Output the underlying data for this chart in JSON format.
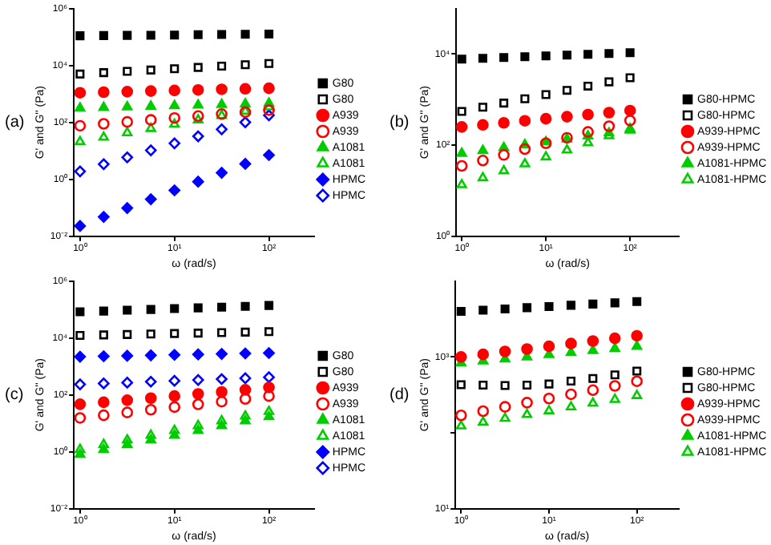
{
  "chart_data": [
    {
      "type": "scatter",
      "title": "(a)",
      "xlabel": "ω (rad/s)",
      "ylabel": "G' and G'' (Pa)",
      "log": "xy",
      "grid": false,
      "legend": "right",
      "x": [
        1,
        1.78,
        3.16,
        5.62,
        10,
        17.8,
        31.6,
        56.2,
        100
      ],
      "xlim": [
        0.86,
        300
      ],
      "xticks": [
        {
          "value": 1,
          "label": "10⁰"
        },
        {
          "value": 10,
          "label": "10¹"
        },
        {
          "value": 100,
          "label": "10²"
        }
      ],
      "ylim": [
        0.01,
        1000000
      ],
      "yticks": [
        {
          "value": 0.01,
          "label": "10⁻²"
        },
        {
          "value": 1,
          "label": "10⁰"
        },
        {
          "value": 100,
          "label": "10²"
        },
        {
          "value": 10000,
          "label": "10⁴"
        },
        {
          "value": 1000000,
          "label": "10⁶"
        }
      ],
      "series": [
        {
          "name": "G80",
          "color": "#000000",
          "marker": "square",
          "values": [
            110000,
            112000,
            114000,
            115000,
            117000,
            120000,
            122000,
            124000,
            126000
          ]
        },
        {
          "name": "G80",
          "color": "#000000",
          "marker": "square",
          "values": [
            5000,
            5600,
            6200,
            6900,
            7700,
            8500,
            9500,
            10600,
            11700
          ]
        },
        {
          "name": "A939",
          "color": "#ff0000",
          "marker": "circle",
          "values": [
            1100,
            1150,
            1200,
            1260,
            1320,
            1380,
            1450,
            1510,
            1580
          ]
        },
        {
          "name": "A939",
          "color": "#ff0000",
          "marker": "circle",
          "values": [
            76,
            89,
            104,
            122,
            143,
            167,
            196,
            230,
            269
          ]
        },
        {
          "name": "A1081",
          "color": "#00cc00",
          "marker": "triangle",
          "values": [
            316,
            332,
            348,
            366,
            384,
            403,
            423,
            445,
            468
          ]
        },
        {
          "name": "A1081",
          "color": "#00cc00",
          "marker": "triangle",
          "values": [
            21,
            30,
            43,
            61,
            86,
            122,
            173,
            245,
            347
          ]
        },
        {
          "name": "HPMC",
          "color": "#0000ff",
          "marker": "diamond",
          "values": [
            0.023,
            0.048,
            0.098,
            0.2,
            0.41,
            0.83,
            1.7,
            3.5,
            7.1
          ]
        },
        {
          "name": "HPMC",
          "color": "#0000ff",
          "marker": "diamond",
          "values": [
            1.9,
            3.4,
            5.9,
            10.4,
            18.4,
            32.5,
            57,
            101,
            178
          ]
        }
      ]
    },
    {
      "type": "scatter",
      "title": "(b)",
      "xlabel": "ω (rad/s)",
      "ylabel": "G' and G'' (Pa)",
      "log": "xy",
      "grid": false,
      "legend": "right",
      "x": [
        1,
        1.78,
        3.16,
        5.62,
        10,
        17.8,
        31.6,
        56.2,
        100
      ],
      "xlim": [
        0.86,
        380
      ],
      "xticks": [
        {
          "value": 1,
          "label": "10⁰"
        },
        {
          "value": 10,
          "label": "10¹"
        },
        {
          "value": 100,
          "label": "10²"
        }
      ],
      "ylim": [
        1,
        100000
      ],
      "yticks": [
        {
          "value": 1,
          "label": "10⁰"
        },
        {
          "value": 100,
          "label": "10²"
        },
        {
          "value": 10000,
          "label": "10⁴"
        }
      ],
      "series": [
        {
          "name": "G80-HPMC",
          "color": "#000000",
          "marker": "square",
          "values": [
            7760,
            8080,
            8410,
            8750,
            9120,
            9490,
            9880,
            10280,
            10700
          ]
        },
        {
          "name": "G80-HPMC",
          "color": "#000000",
          "marker": "square",
          "values": [
            550,
            680,
            840,
            1040,
            1290,
            1600,
            1980,
            2450,
            3020
          ]
        },
        {
          "name": "A939-HPMC",
          "color": "#ff0000",
          "marker": "circle",
          "values": [
            251,
            279,
            309,
            343,
            380,
            422,
            468,
            519,
            575
          ]
        },
        {
          "name": "A939-HPMC",
          "color": "#ff0000",
          "marker": "circle",
          "values": [
            35,
            46,
            61,
            82,
            110,
            145,
            195,
            260,
            347
          ]
        },
        {
          "name": "A1081-HPMC",
          "color": "#00cc00",
          "marker": "triangle",
          "values": [
            66,
            76,
            88,
            102,
            118,
            137,
            159,
            184,
            214
          ]
        },
        {
          "name": "A1081-HPMC",
          "color": "#00cc00",
          "marker": "triangle",
          "values": [
            13.5,
            19.2,
            27.3,
            38.8,
            55,
            78,
            112,
            160,
            229
          ]
        }
      ]
    },
    {
      "type": "scatter",
      "title": "(c)",
      "xlabel": "ω (rad/s)",
      "ylabel": "G' and G'' (Pa)",
      "log": "xy",
      "grid": false,
      "legend": "right",
      "x": [
        1,
        1.78,
        3.16,
        5.62,
        10,
        17.8,
        31.6,
        56.2,
        100
      ],
      "xlim": [
        0.86,
        300
      ],
      "xticks": [
        {
          "value": 1,
          "label": "10⁰"
        },
        {
          "value": 10,
          "label": "10¹"
        },
        {
          "value": 100,
          "label": "10²"
        }
      ],
      "ylim": [
        0.01,
        1000000
      ],
      "yticks": [
        {
          "value": 0.01,
          "label": "10⁻²"
        },
        {
          "value": 1,
          "label": "10⁰"
        },
        {
          "value": 100,
          "label": "10²"
        },
        {
          "value": 10000,
          "label": "10⁴"
        },
        {
          "value": 1000000,
          "label": "10⁶"
        }
      ],
      "series": [
        {
          "name": "G80",
          "color": "#000000",
          "marker": "square",
          "values": [
            83000,
            88000,
            94000,
            100000,
            107000,
            114000,
            121000,
            129000,
            138000
          ]
        },
        {
          "name": "G80",
          "color": "#000000",
          "marker": "square",
          "values": [
            12300,
            12800,
            13200,
            13700,
            14300,
            14800,
            15400,
            16000,
            16600
          ]
        },
        {
          "name": "A939",
          "color": "#ff0000",
          "marker": "circle",
          "values": [
            47,
            55,
            65,
            77,
            91,
            108,
            127,
            151,
            182
          ]
        },
        {
          "name": "A939",
          "color": "#ff0000",
          "marker": "circle",
          "values": [
            15.5,
            19.3,
            24.1,
            30,
            37.4,
            46.6,
            58,
            72,
            91
          ]
        },
        {
          "name": "A1081",
          "color": "#00cc00",
          "marker": "triangle",
          "values": [
            0.81,
            1.2,
            1.8,
            2.6,
            3.8,
            5.6,
            8.3,
            12.2,
            17
          ]
        },
        {
          "name": "A1081",
          "color": "#00cc00",
          "marker": "triangle",
          "values": [
            1.2,
            1.8,
            2.6,
            3.8,
            5.6,
            8.3,
            12.2,
            17.9,
            26
          ]
        },
        {
          "name": "HPMC",
          "color": "#0000ff",
          "marker": "diamond",
          "values": [
            2190,
            2270,
            2360,
            2450,
            2550,
            2650,
            2750,
            2850,
            2950
          ]
        },
        {
          "name": "HPMC",
          "color": "#0000ff",
          "marker": "diamond",
          "values": [
            234,
            252,
            270,
            290,
            311,
            334,
            358,
            384,
            417
          ]
        }
      ]
    },
    {
      "type": "scatter",
      "title": "(d)",
      "xlabel": "ω (rad/s)",
      "ylabel": "G' and G'' (Pa)",
      "log": "xy",
      "grid": false,
      "legend": "right",
      "x": [
        1,
        1.78,
        3.16,
        5.62,
        10,
        17.8,
        31.6,
        56.2,
        100
      ],
      "xlim": [
        0.86,
        300
      ],
      "xticks": [
        {
          "value": 1,
          "label": "10⁰"
        },
        {
          "value": 10,
          "label": "10¹"
        },
        {
          "value": 100,
          "label": "10²"
        }
      ],
      "ylim": [
        10,
        10000
      ],
      "yticks": [
        {
          "value": 10,
          "label": "10¹"
        },
        {
          "value": 100,
          "label": null
        },
        {
          "value": 1000,
          "label": "10³"
        }
      ],
      "series": [
        {
          "name": "G80-HPMC",
          "color": "#000000",
          "marker": "square",
          "values": [
            3980,
            4130,
            4290,
            4450,
            4610,
            4790,
            4970,
            5150,
            5370
          ]
        },
        {
          "name": "G80-HPMC",
          "color": "#000000",
          "marker": "square",
          "values": [
            430,
            425,
            420,
            425,
            440,
            480,
            520,
            580,
            650
          ]
        },
        {
          "name": "A939-HPMC",
          "color": "#ff0000",
          "marker": "circle",
          "values": [
            1000,
            1080,
            1180,
            1270,
            1380,
            1500,
            1620,
            1760,
            1900
          ]
        },
        {
          "name": "A939-HPMC",
          "color": "#ff0000",
          "marker": "circle",
          "values": [
            170,
            193,
            220,
            250,
            283,
            322,
            365,
            415,
            478
          ]
        },
        {
          "name": "A1081-HPMC",
          "color": "#00cc00",
          "marker": "triangle",
          "values": [
            830,
            885,
            940,
            1000,
            1070,
            1140,
            1210,
            1290,
            1380
          ]
        },
        {
          "name": "A1081-HPMC",
          "color": "#00cc00",
          "marker": "triangle",
          "values": [
            123,
            138,
            155,
            174,
            195,
            219,
            246,
            275,
            309
          ]
        }
      ]
    }
  ]
}
